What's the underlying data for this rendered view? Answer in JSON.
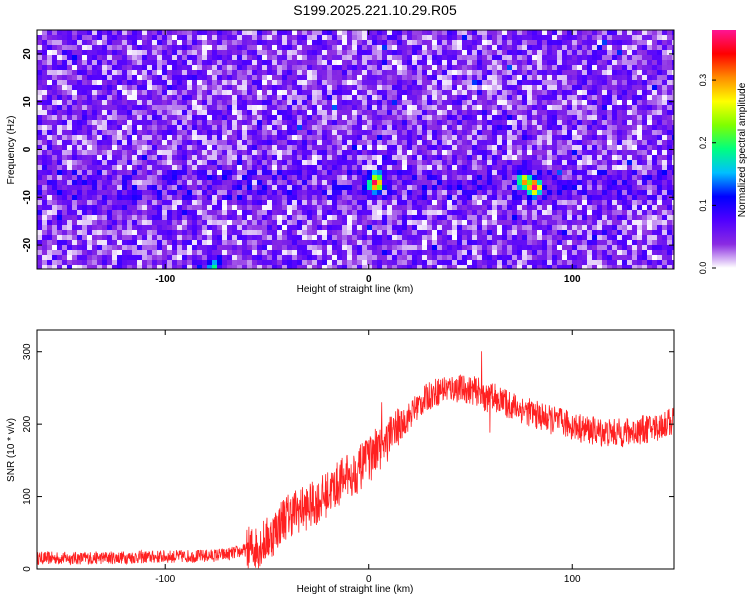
{
  "title": "S199.2025.221.10.29.R05",
  "chart_data": [
    {
      "type": "heatmap",
      "xlabel": "Height of straight line (km)",
      "ylabel": "Frequency (Hz)",
      "xlim": [
        -163,
        150
      ],
      "ylim": [
        -25,
        25
      ],
      "xticks": [
        "-100",
        "0",
        "100"
      ],
      "yticks": [
        "-20",
        "-10",
        "0",
        "10",
        "20"
      ],
      "colorbar": {
        "label": "Normalized spectral amplitude",
        "range": [
          0,
          0.38
        ],
        "ticks": [
          "0.0",
          "0.1",
          "0.2",
          "0.3"
        ],
        "colors": [
          "#ffffff",
          "#8a2be2",
          "#5000ff",
          "#0000ff",
          "#00bfff",
          "#00ff7f",
          "#7fff00",
          "#ffff00",
          "#ff8c00",
          "#ff0000",
          "#ff1493"
        ]
      },
      "peaks": [
        {
          "x": 2,
          "y": -6.5,
          "value": 0.36
        },
        {
          "x": 80,
          "y": -7.5,
          "value": 0.33
        },
        {
          "x": 75,
          "y": -6,
          "value": 0.2
        },
        {
          "x": -78,
          "y": -24,
          "value": 0.18
        }
      ]
    },
    {
      "type": "line",
      "xlabel": "Height of straight line (km)",
      "ylabel": "SNR (10 * v/v)",
      "xlim": [
        -163,
        150
      ],
      "ylim": [
        0,
        330
      ],
      "xticks": [
        "-100",
        "0",
        "100"
      ],
      "yticks": [
        "0",
        "100",
        "200",
        "300"
      ],
      "color": "#ff2020",
      "series": [
        {
          "name": "SNR",
          "x": [
            -163,
            -140,
            -120,
            -100,
            -80,
            -70,
            -62,
            -55,
            -48,
            -42,
            -36,
            -30,
            -24,
            -18,
            -12,
            -6,
            0,
            6,
            12,
            18,
            24,
            30,
            36,
            42,
            48,
            54,
            58,
            62,
            66,
            70,
            76,
            82,
            88,
            94,
            100,
            106,
            112,
            118,
            124,
            130,
            136,
            142,
            150
          ],
          "y": [
            15,
            15,
            16,
            17,
            18,
            20,
            25,
            30,
            45,
            70,
            80,
            85,
            95,
            110,
            125,
            135,
            150,
            165,
            185,
            205,
            225,
            240,
            248,
            250,
            248,
            245,
            235,
            238,
            230,
            226,
            220,
            213,
            207,
            203,
            198,
            193,
            190,
            188,
            188,
            190,
            193,
            196,
            205
          ]
        }
      ]
    }
  ]
}
